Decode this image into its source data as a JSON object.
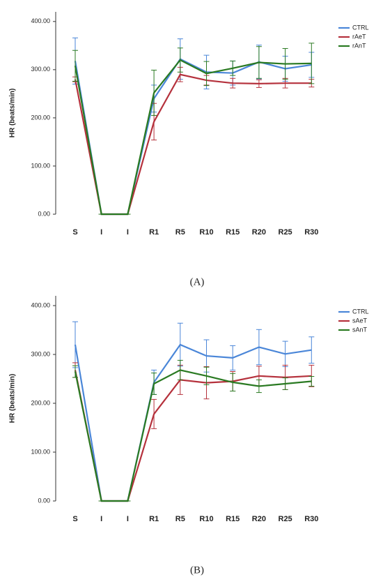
{
  "chart_data": [
    {
      "type": "line",
      "caption": "(A)",
      "ylabel": "HR (beats/min)",
      "categories": [
        "S",
        "I",
        "I",
        "R1",
        "R5",
        "R10",
        "R15",
        "R20",
        "R25",
        "R30"
      ],
      "ylim": [
        0,
        420
      ],
      "yticks": [
        {
          "value": 0,
          "label": "0.00"
        },
        {
          "value": 100,
          "label": "100.00"
        },
        {
          "value": 200,
          "label": "200.00"
        },
        {
          "value": 300,
          "label": "300.00"
        },
        {
          "value": 400,
          "label": "400.00"
        }
      ],
      "series": [
        {
          "name": "CTRL",
          "color": "#4a86d8",
          "values": [
            318,
            0,
            0,
            240,
            322,
            295,
            293,
            316,
            302,
            310
          ],
          "errors": [
            48,
            0,
            0,
            28,
            42,
            35,
            25,
            35,
            26,
            26
          ]
        },
        {
          "name": "rAeT",
          "color": "#b5313c",
          "values": [
            280,
            0,
            0,
            192,
            290,
            278,
            272,
            271,
            272,
            272
          ],
          "errors": [
            5,
            0,
            0,
            38,
            15,
            10,
            10,
            8,
            10,
            8
          ]
        },
        {
          "name": "rAnT",
          "color": "#2a7a22",
          "values": [
            308,
            0,
            0,
            252,
            320,
            292,
            303,
            315,
            312,
            313
          ],
          "errors": [
            32,
            0,
            0,
            47,
            25,
            25,
            15,
            33,
            32,
            42
          ]
        }
      ]
    },
    {
      "type": "line",
      "caption": "(B)",
      "ylabel": "HR (beats/min)",
      "categories": [
        "S",
        "I",
        "I",
        "R1",
        "R5",
        "R10",
        "R15",
        "R20",
        "R25",
        "R30"
      ],
      "ylim": [
        0,
        420
      ],
      "yticks": [
        {
          "value": 0,
          "label": "0.00"
        },
        {
          "value": 100,
          "label": "100.00"
        },
        {
          "value": 200,
          "label": "200.00"
        },
        {
          "value": 300,
          "label": "300.00"
        },
        {
          "value": 400,
          "label": "400.00"
        }
      ],
      "series": [
        {
          "name": "CTRL",
          "color": "#4a86d8",
          "values": [
            320,
            0,
            0,
            243,
            320,
            297,
            293,
            315,
            301,
            309
          ],
          "errors": [
            47,
            0,
            0,
            25,
            44,
            33,
            25,
            36,
            26,
            27
          ]
        },
        {
          "name": "sAeT",
          "color": "#b5313c",
          "values": [
            268,
            0,
            0,
            178,
            248,
            242,
            245,
            256,
            253,
            256
          ],
          "errors": [
            15,
            0,
            0,
            30,
            30,
            33,
            20,
            20,
            25,
            22
          ]
        },
        {
          "name": "sAnT",
          "color": "#2a7a22",
          "values": [
            265,
            0,
            0,
            240,
            268,
            256,
            243,
            235,
            240,
            245
          ],
          "errors": [
            12,
            0,
            0,
            22,
            20,
            18,
            18,
            13,
            12,
            10
          ]
        }
      ]
    }
  ]
}
